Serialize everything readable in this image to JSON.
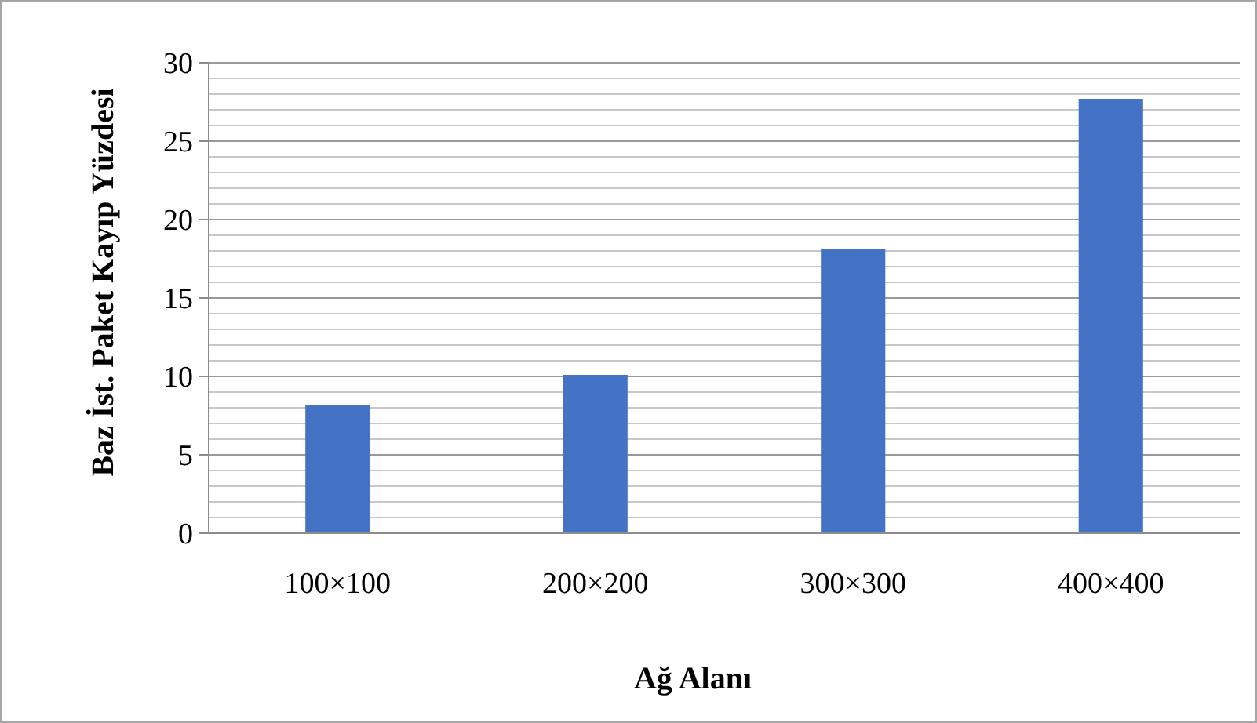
{
  "chart_data": {
    "type": "bar",
    "xlabel": "Ağ Alanı",
    "ylabel": "Baz İst. Paket Kayıp Yüzdesi",
    "categories": [
      "100×100",
      "200×200",
      "300×300",
      "400×400"
    ],
    "series": [
      {
        "color": "#4472c4",
        "values": [
          8.2,
          10.1,
          18.1,
          27.7
        ]
      }
    ],
    "ylim": [
      0,
      30
    ],
    "yticks": [
      0,
      {
        "value": 1,
        "label": null
      },
      {
        "value": 2,
        "label": null
      },
      {
        "value": 3,
        "label": null
      },
      {
        "value": 4,
        "label": null
      },
      5,
      {
        "value": 6,
        "label": null
      },
      {
        "value": 7,
        "label": null
      },
      {
        "value": 8,
        "label": null
      },
      {
        "value": 9,
        "label": null
      },
      10,
      {
        "value": 11,
        "label": null
      },
      {
        "value": 12,
        "label": null
      },
      {
        "value": 13,
        "label": null
      },
      {
        "value": 14,
        "label": null
      },
      15,
      {
        "value": 16,
        "label": null
      },
      {
        "value": 17,
        "label": null
      },
      {
        "value": 18,
        "label": null
      },
      {
        "value": 19,
        "label": null
      },
      20,
      {
        "value": 21,
        "label": null
      },
      {
        "value": 22,
        "label": null
      },
      {
        "value": 23,
        "label": null
      },
      {
        "value": 24,
        "label": null
      },
      25,
      {
        "value": 26,
        "label": null
      },
      {
        "value": 27,
        "label": null
      },
      {
        "value": 28,
        "label": null
      },
      {
        "value": 29,
        "label": null
      },
      30
    ],
    "grid": true
  }
}
